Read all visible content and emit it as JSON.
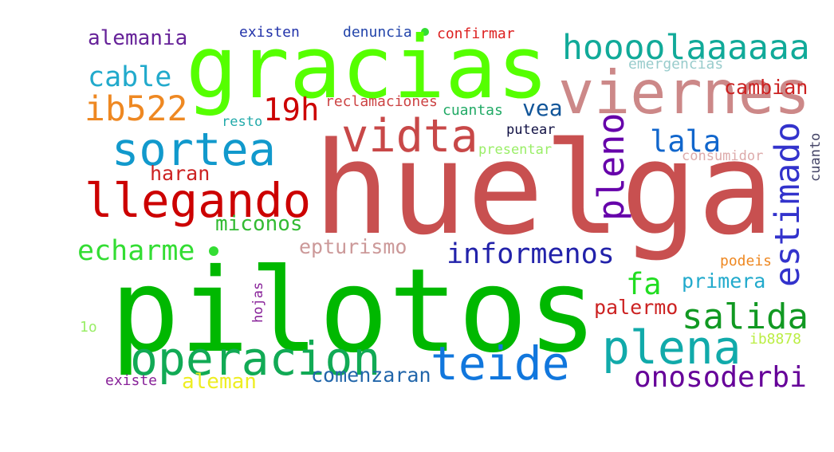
{
  "words": [
    {
      "text": "huelga",
      "color": "#c85050"
    },
    {
      "text": "pilotos",
      "color": "#00b800"
    },
    {
      "text": "gracias",
      "color": "#55ff00"
    },
    {
      "text": "viernes",
      "color": "#cc8888"
    },
    {
      "text": "vidta",
      "color": "#c84848"
    },
    {
      "text": "sortea",
      "color": "#1199cc"
    },
    {
      "text": "llegando",
      "color": "#cc0000"
    },
    {
      "text": "hoooolaaaaaa",
      "color": "#11aa99"
    },
    {
      "text": "operacion",
      "color": "#11aa55"
    },
    {
      "text": "teide",
      "color": "#1177dd"
    },
    {
      "text": "plena",
      "color": "#11aaaa"
    },
    {
      "text": "salida",
      "color": "#119922"
    },
    {
      "text": "estimado",
      "color": "#3333cc"
    },
    {
      "text": "pleno",
      "color": "#6600aa"
    },
    {
      "text": "lala",
      "color": "#1166cc"
    },
    {
      "text": "ib522",
      "color": "#ee8822"
    },
    {
      "text": "19h",
      "color": "#cc0000"
    },
    {
      "text": "cable",
      "color": "#22aacc"
    },
    {
      "text": "alemania",
      "color": "#662299"
    },
    {
      "text": "vea",
      "color": "#115599"
    },
    {
      "text": "echarme",
      "color": "#33dd33"
    },
    {
      "text": "informenos",
      "color": "#2222aa"
    },
    {
      "text": "epturismo",
      "color": "#cc9999"
    },
    {
      "text": "miconos",
      "color": "#33bb33"
    },
    {
      "text": "haran",
      "color": "#cc2222"
    },
    {
      "text": "fa",
      "color": "#22dd22"
    },
    {
      "text": "primera",
      "color": "#22aacc"
    },
    {
      "text": "palermo",
      "color": "#cc2222"
    },
    {
      "text": "onosoderbi",
      "color": "#660099"
    },
    {
      "text": "comenzaran",
      "color": "#2266aa"
    },
    {
      "text": "aleman",
      "color": "#eeee22"
    },
    {
      "text": "existe",
      "color": "#882299"
    },
    {
      "text": "hojas",
      "color": "#882299"
    },
    {
      "text": "1o",
      "color": "#99ee66"
    },
    {
      "text": "existen",
      "color": "#2233aa"
    },
    {
      "text": "denuncia",
      "color": "#2244aa"
    },
    {
      "text": "confirmar",
      "color": "#dd2222"
    },
    {
      "text": "emergencias",
      "color": "#99cccc"
    },
    {
      "text": "cambian",
      "color": "#cc2222"
    },
    {
      "text": "reclamaciones",
      "color": "#cc4444"
    },
    {
      "text": "cuantas",
      "color": "#22aa66"
    },
    {
      "text": "resto",
      "color": "#22aaaa"
    },
    {
      "text": "putear",
      "color": "#111144"
    },
    {
      "text": "presentar",
      "color": "#99ee66"
    },
    {
      "text": "consumidor",
      "color": "#ddaaaa"
    },
    {
      "text": "cuanto",
      "color": "#444466"
    },
    {
      "text": "podeis",
      "color": "#ee8822"
    },
    {
      "text": "ib8878",
      "color": "#bbee44"
    }
  ]
}
